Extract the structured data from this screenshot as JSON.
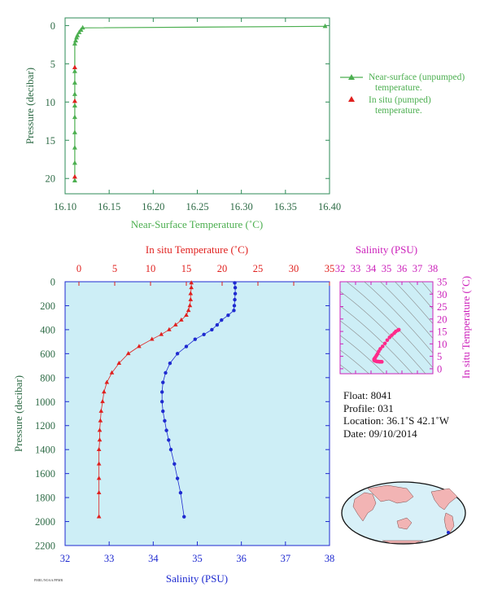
{
  "chart_data": [
    {
      "type": "line",
      "xlabel": "Near-Surface Temperature (˚C)",
      "ylabel": "Pressure (decibar)",
      "xlim": [
        16.1,
        16.4
      ],
      "ylim": [
        22,
        -1
      ],
      "x_ticks": [
        "16.10",
        "16.15",
        "16.20",
        "16.25",
        "16.30",
        "16.35",
        "16.40"
      ],
      "y_ticks": [
        "0",
        "5",
        "10",
        "15",
        "20"
      ],
      "legend": {
        "position": "right",
        "entries": [
          "Near-surface (unpumped) temperature.",
          "In situ (pumped) temperature."
        ]
      },
      "series": [
        {
          "name": "Near-surface (unpumped) temperature.",
          "color": "#4caf50",
          "x": [
            16.395,
            16.12,
            16.118,
            16.116,
            16.114,
            16.113,
            16.112,
            16.111,
            16.111,
            16.111,
            16.111,
            16.111,
            16.111,
            16.111,
            16.111,
            16.111,
            16.111
          ],
          "y": [
            0.1,
            0.3,
            0.6,
            0.9,
            1.3,
            1.6,
            2.0,
            2.4,
            6.0,
            7.5,
            9.0,
            10.5,
            12.0,
            14.0,
            16.0,
            18.0,
            20.3
          ]
        },
        {
          "name": "In situ (pumped) temperature.",
          "color": "#e0201e",
          "x": [
            16.111,
            16.111,
            16.111
          ],
          "y": [
            5.5,
            9.9,
            19.8
          ]
        }
      ]
    },
    {
      "type": "scatter",
      "title_top_axis": "In situ Temperature (˚C)",
      "xlabel": "Salinity (PSU)",
      "ylabel": "Pressure (decibar)",
      "temp_lim": [
        0,
        35
      ],
      "sal_lim": [
        32,
        38
      ],
      "ylim": [
        2200,
        0
      ],
      "temp_ticks": [
        "0",
        "5",
        "10",
        "15",
        "20",
        "25",
        "30",
        "35"
      ],
      "sal_ticks": [
        "32",
        "33",
        "34",
        "35",
        "36",
        "37",
        "38"
      ],
      "y_ticks": [
        "0",
        "200",
        "400",
        "600",
        "800",
        "1000",
        "1200",
        "1400",
        "1600",
        "1800",
        "2000",
        "2200"
      ],
      "series": [
        {
          "name": "In situ Temperature (˚C)",
          "color": "#e0201e",
          "x": [
            15.7,
            15.7,
            15.6,
            15.6,
            15.5,
            15.3,
            15.0,
            14.3,
            13.5,
            12.6,
            11.5,
            10.2,
            8.4,
            6.9,
            5.6,
            4.6,
            3.9,
            3.5,
            3.3,
            3.1,
            3.0,
            2.9,
            2.9,
            2.8,
            2.8,
            2.8,
            2.8,
            2.8
          ],
          "y": [
            10,
            50,
            100,
            150,
            200,
            240,
            280,
            320,
            360,
            400,
            440,
            480,
            540,
            600,
            680,
            760,
            840,
            920,
            1000,
            1080,
            1160,
            1240,
            1320,
            1400,
            1520,
            1640,
            1760,
            1960
          ]
        },
        {
          "name": "Salinity (PSU)",
          "color": "#1e2ad0",
          "x": [
            35.85,
            35.86,
            35.86,
            35.85,
            35.84,
            35.83,
            35.7,
            35.55,
            35.45,
            35.33,
            35.15,
            34.95,
            34.75,
            34.55,
            34.38,
            34.28,
            34.22,
            34.2,
            34.2,
            34.22,
            34.26,
            34.3,
            34.35,
            34.4,
            34.48,
            34.55,
            34.62,
            34.7
          ],
          "y": [
            10,
            50,
            100,
            150,
            200,
            240,
            280,
            320,
            360,
            400,
            440,
            480,
            540,
            600,
            680,
            760,
            840,
            920,
            1000,
            1080,
            1160,
            1240,
            1320,
            1400,
            1520,
            1640,
            1760,
            1960
          ]
        }
      ]
    },
    {
      "type": "scatter",
      "title": "Salinity (PSU)",
      "ylabel": "In situ Temperature (˚C)",
      "xlim": [
        32,
        38
      ],
      "ylim": [
        -2,
        35
      ],
      "x_ticks": [
        "32",
        "33",
        "34",
        "35",
        "36",
        "37",
        "38"
      ],
      "y_ticks": [
        "0",
        "5",
        "10",
        "15",
        "20",
        "25",
        "30",
        "35"
      ],
      "series": [
        {
          "name": "T-S",
          "color": "#ff2a8a",
          "x": [
            35.8,
            35.75,
            35.6,
            35.5,
            35.35,
            35.2,
            35.05,
            34.9,
            34.75,
            34.6,
            34.5,
            34.42,
            34.35,
            34.28,
            34.23,
            34.2,
            34.2,
            34.22,
            34.26,
            34.3,
            34.35,
            34.4,
            34.48,
            34.55,
            34.62,
            34.7
          ],
          "y": [
            15.7,
            15.5,
            15.0,
            14.3,
            13.5,
            12.6,
            11.5,
            10.2,
            9.0,
            8.0,
            7.0,
            6.0,
            5.3,
            4.6,
            4.1,
            3.9,
            3.5,
            3.3,
            3.2,
            3.1,
            3.0,
            2.9,
            2.9,
            2.8,
            2.8,
            2.8
          ]
        }
      ]
    }
  ],
  "info": {
    "float": "Float:  8041",
    "profile": "Profile:  031",
    "location": "Location:  36.1˚S  42.1˚W",
    "date": "Date:  09/10/2014"
  },
  "footer_note": "PMEL/NOAA/PFMR"
}
